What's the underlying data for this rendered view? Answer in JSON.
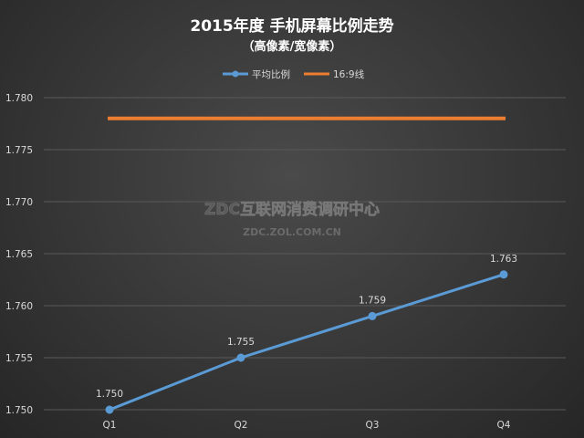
{
  "colors": {
    "series_avg": "#5b9bd5",
    "series_ref": "#ed7d31",
    "gridline": "#595959",
    "axis_text": "#d9d9d9"
  },
  "chart_data": {
    "type": "line",
    "title": "2015年度 手机屏幕比例走势",
    "subtitle": "（高像素/宽像素）",
    "categories": [
      "Q1",
      "Q2",
      "Q3",
      "Q4"
    ],
    "series": [
      {
        "name": "平均比例",
        "values": [
          1.75,
          1.755,
          1.759,
          1.763
        ],
        "data_labels": [
          "1.750",
          "1.755",
          "1.759",
          "1.763"
        ],
        "markers": true
      },
      {
        "name": "16:9线",
        "values": [
          1.778,
          1.778,
          1.778,
          1.778
        ],
        "markers": false
      }
    ],
    "ylim": [
      1.75,
      1.78
    ],
    "yticks": [
      "1.750",
      "1.755",
      "1.760",
      "1.765",
      "1.770",
      "1.775",
      "1.780"
    ],
    "grid": true,
    "legend_position": "top-center"
  },
  "watermark": {
    "line1": "ZDC互联网消费调研中心",
    "line2": "ZDC.ZOL.COM.CN"
  }
}
